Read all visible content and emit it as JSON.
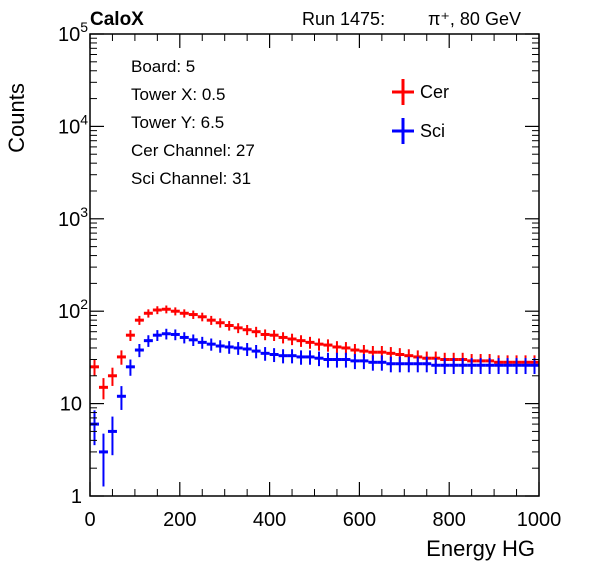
{
  "chart_data": {
    "type": "histogram",
    "brand": "CaloX",
    "run_label": "Run 1475:",
    "particle_label": "π⁺, 80 GeV",
    "xlabel": "Energy HG",
    "ylabel": "Counts",
    "xlim": [
      0,
      1000
    ],
    "ylim": [
      1,
      100000
    ],
    "yscale": "log",
    "x_ticks": [
      {
        "value": 0,
        "label": "0"
      },
      {
        "value": 200,
        "label": "200"
      },
      {
        "value": 400,
        "label": "400"
      },
      {
        "value": 600,
        "label": "600"
      },
      {
        "value": 800,
        "label": "800"
      },
      {
        "value": 1000,
        "label": "1000"
      }
    ],
    "y_ticks": [
      {
        "value": 1,
        "base": "1",
        "exp": ""
      },
      {
        "value": 10,
        "base": "10",
        "exp": ""
      },
      {
        "value": 100,
        "base": "10",
        "exp": "2"
      },
      {
        "value": 1000,
        "base": "10",
        "exp": "3"
      },
      {
        "value": 10000,
        "base": "10",
        "exp": "4"
      },
      {
        "value": 100000,
        "base": "10",
        "exp": "5"
      }
    ],
    "info_lines": [
      "Board: 5",
      "Tower X: 0.5",
      "Tower Y: 6.5",
      "Cer Channel: 27",
      "Sci Channel: 31"
    ],
    "legend_position": "top-right",
    "series": [
      {
        "name": "Cer",
        "color": "#ff0000",
        "bin_width": 20,
        "x": [
          10,
          30,
          50,
          70,
          90,
          110,
          130,
          150,
          170,
          190,
          210,
          230,
          250,
          270,
          290,
          310,
          330,
          350,
          370,
          390,
          410,
          430,
          450,
          470,
          490,
          510,
          530,
          550,
          570,
          590,
          610,
          630,
          650,
          670,
          690,
          710,
          730,
          750,
          770,
          790,
          810,
          830,
          850,
          870,
          890,
          910,
          930,
          950,
          970,
          990
        ],
        "y": [
          25,
          15,
          20,
          32,
          55,
          80,
          95,
          103,
          105,
          100,
          95,
          92,
          87,
          80,
          75,
          70,
          66,
          63,
          60,
          56,
          55,
          52,
          50,
          48,
          46,
          44,
          43,
          41,
          40,
          38,
          37,
          36,
          36,
          35,
          34,
          33,
          32,
          31,
          31,
          30,
          30,
          30,
          29,
          29,
          29,
          28,
          28,
          28,
          28,
          28
        ]
      },
      {
        "name": "Sci",
        "color": "#0000ff",
        "bin_width": 20,
        "x": [
          10,
          30,
          50,
          70,
          90,
          110,
          130,
          150,
          170,
          190,
          210,
          230,
          250,
          270,
          290,
          310,
          330,
          350,
          370,
          390,
          410,
          430,
          450,
          470,
          490,
          510,
          530,
          550,
          570,
          590,
          610,
          630,
          650,
          670,
          690,
          710,
          730,
          750,
          770,
          790,
          810,
          830,
          850,
          870,
          890,
          910,
          930,
          950,
          970,
          990
        ],
        "y": [
          6,
          3,
          5,
          12,
          25,
          38,
          48,
          55,
          57,
          56,
          52,
          49,
          46,
          44,
          42,
          41,
          40,
          39,
          37,
          35,
          34,
          33,
          33,
          32,
          32,
          31,
          30,
          30,
          30,
          29,
          29,
          28,
          28,
          27,
          27,
          27,
          27,
          27,
          26,
          26,
          26,
          26,
          26,
          26,
          26,
          26,
          26,
          26,
          26,
          26
        ]
      }
    ]
  }
}
